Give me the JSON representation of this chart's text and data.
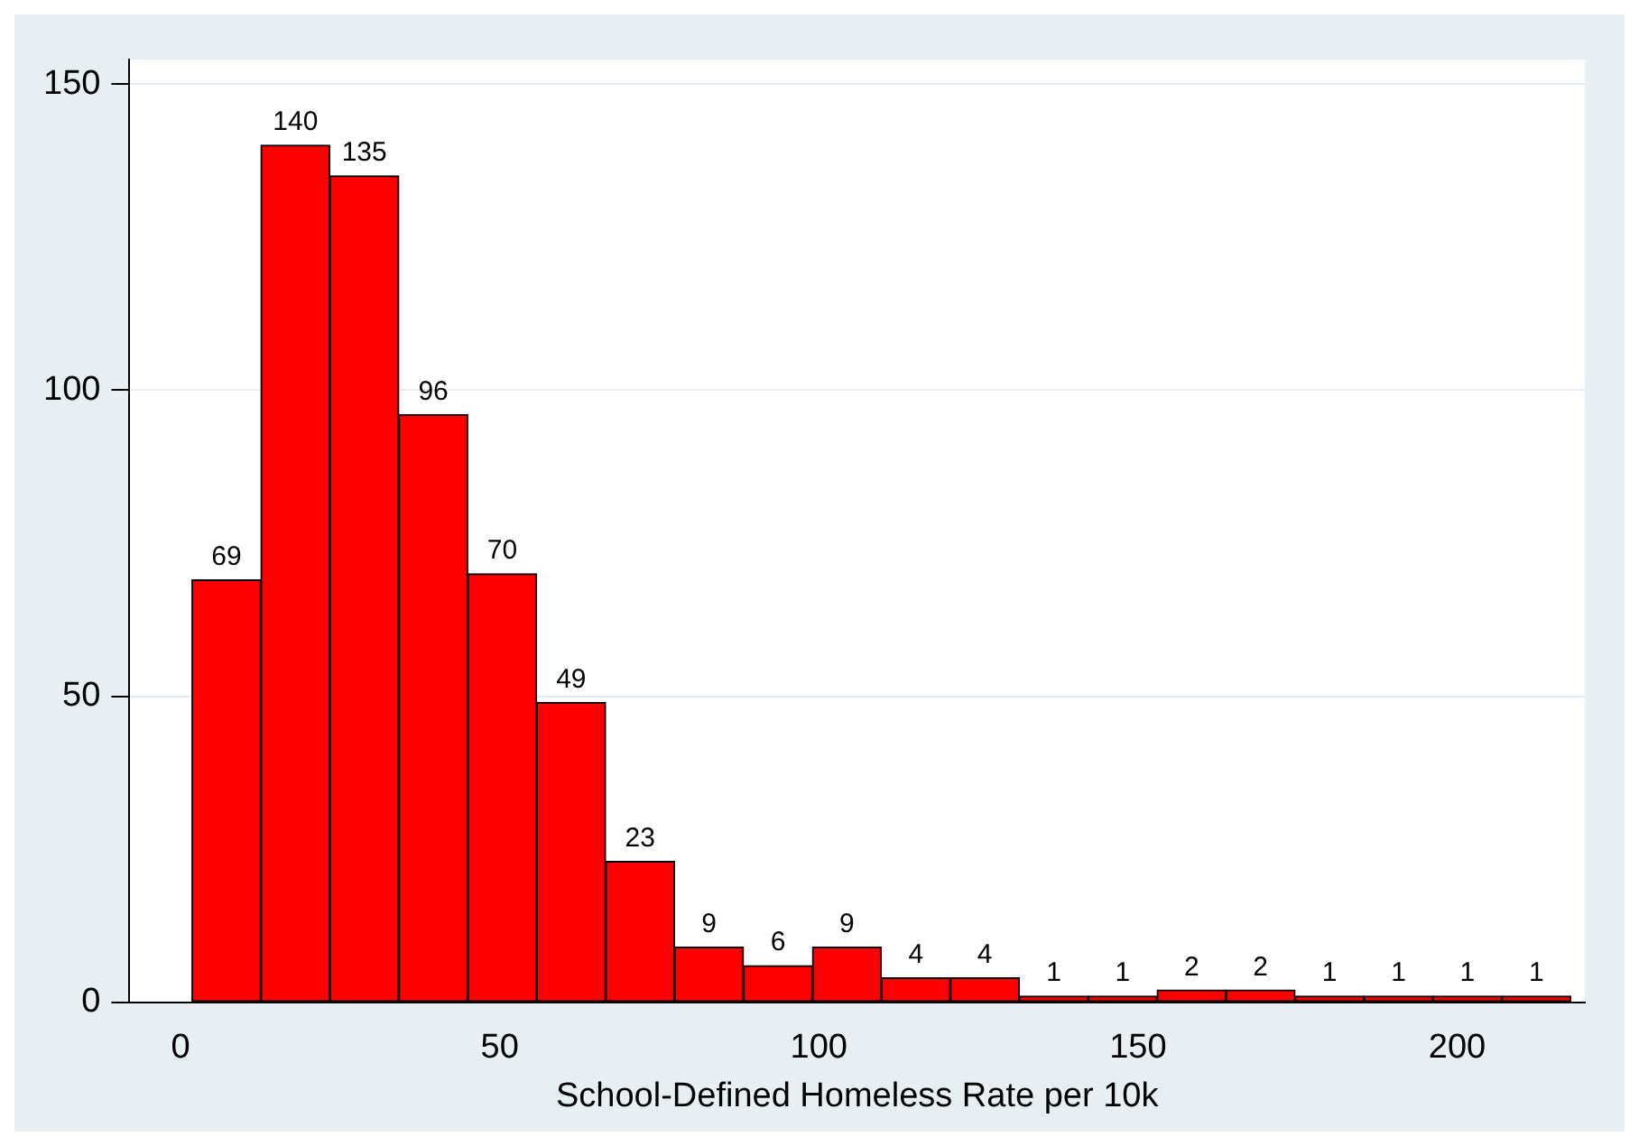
{
  "chart_data": {
    "type": "histogram",
    "xlabel": "School-Defined Homeless Rate per 10k",
    "bins": [
      1.8,
      12.6,
      23.4,
      34.2,
      45,
      55.8,
      66.6,
      77.4,
      88.2,
      99,
      109.8,
      120.6,
      131.4,
      142.2,
      153,
      163.8,
      174.6,
      185.4,
      196.2,
      207,
      217.8
    ],
    "values": [
      69,
      140,
      135,
      96,
      70,
      49,
      23,
      9,
      6,
      9,
      4,
      4,
      1,
      1,
      2,
      2,
      1,
      1,
      1,
      1
    ],
    "color": "#ff0000",
    "xlim": [
      -8,
      220
    ],
    "xticks": [
      0,
      50,
      100,
      150,
      200
    ],
    "ylim": [
      0,
      154
    ],
    "yticks": [
      0,
      50,
      100,
      150
    ],
    "grid": "y",
    "data_labels": true
  }
}
